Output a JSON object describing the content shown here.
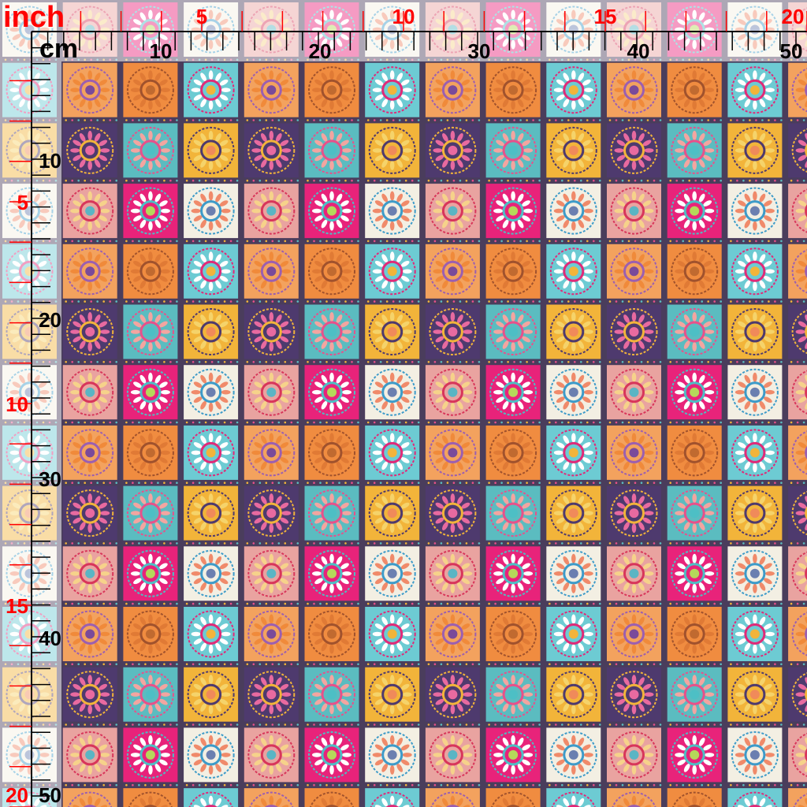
{
  "ruler": {
    "inch_unit": "inch",
    "cm_unit": "cm",
    "top_inch_labels": [
      "5",
      "10",
      "15",
      "20"
    ],
    "top_cm_labels": [
      "10",
      "20",
      "30",
      "40",
      "50"
    ],
    "left_inch_labels": [
      "5",
      "10",
      "15",
      "20"
    ],
    "left_cm_labels": [
      "10",
      "20",
      "30",
      "40",
      "50"
    ],
    "inch_color": "#ff0000",
    "cm_color": "#000000"
  },
  "fabric": {
    "gap_color": "#4a3d5c",
    "tiles": [
      [
        {
          "bg": "#f3efe3",
          "ring": "#3d9bc9",
          "petal": "#f08a6a",
          "center": "#6b7fb0"
        },
        {
          "bg": "#e9a3a0",
          "ring": "#d8365a",
          "petal": "#f6d28a",
          "center": "#5ab5c4"
        },
        {
          "bg": "#e8237a",
          "ring": "#4dbfc5",
          "petal": "#ffffff",
          "center": "#b5d85a"
        }
      ],
      [
        {
          "bg": "#6dcbd3",
          "ring": "#e02a78",
          "petal": "#ffffff",
          "center": "#f2b43a"
        },
        {
          "bg": "#f3a25e",
          "ring": "#9b5fb0",
          "petal": "#f08a3a",
          "center": "#7a4a9a"
        },
        {
          "bg": "#f08c40",
          "ring": "#a0522d",
          "petal": "#e07a35",
          "center": "#c06a30"
        }
      ],
      [
        {
          "bg": "#f2b43a",
          "ring": "#4e3a6e",
          "petal": "#f5d36a",
          "center": "#f08a5a"
        },
        {
          "bg": "#4e3a6e",
          "ring": "#f2b43a",
          "petal": "#e86aa0",
          "center": "#e86aa0"
        },
        {
          "bg": "#5bbcc0",
          "ring": "#e8508a",
          "petal": "#f3a5a0",
          "center": "#4dbfc5"
        }
      ]
    ]
  }
}
